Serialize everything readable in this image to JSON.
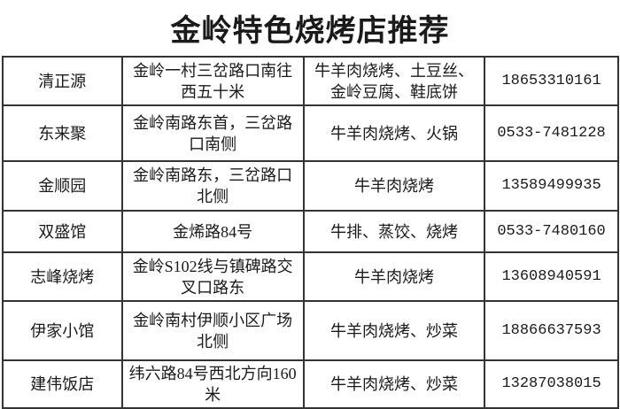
{
  "title": "金岭特色烧烤店推荐",
  "rows": [
    {
      "name": "清正源",
      "address": "金岭一村三岔路口南往西五十米",
      "dishes": "牛羊肉烧烤、土豆丝、金岭豆腐、鞋底饼",
      "phone": "18653310161"
    },
    {
      "name": "东来聚",
      "address": "金岭南路东首，三岔路口南侧",
      "dishes": "牛羊肉烧烤、火锅",
      "phone": "0533-7481228"
    },
    {
      "name": "金顺园",
      "address": "金岭南路东，三岔路口北侧",
      "dishes": "牛羊肉烧烤",
      "phone": "13589499935"
    },
    {
      "name": "双盛馆",
      "address": "金烯路84号",
      "dishes": "牛排、蒸饺、烧烤",
      "phone": "0533-7480160"
    },
    {
      "name": "志峰烧烤",
      "address": "金岭S102线与镇碑路交叉口路东",
      "dishes": "牛羊肉烧烤",
      "phone": "13608940591"
    },
    {
      "name": "伊家小馆",
      "address": "金岭南村伊顺小区广场北侧",
      "dishes": "牛羊肉烧烤、炒菜",
      "phone": "18866637593"
    },
    {
      "name": "建伟饭店",
      "address": "纬六路84号西北方向160米",
      "dishes": "牛羊肉烧烤、炒菜",
      "phone": "13287038015"
    }
  ]
}
